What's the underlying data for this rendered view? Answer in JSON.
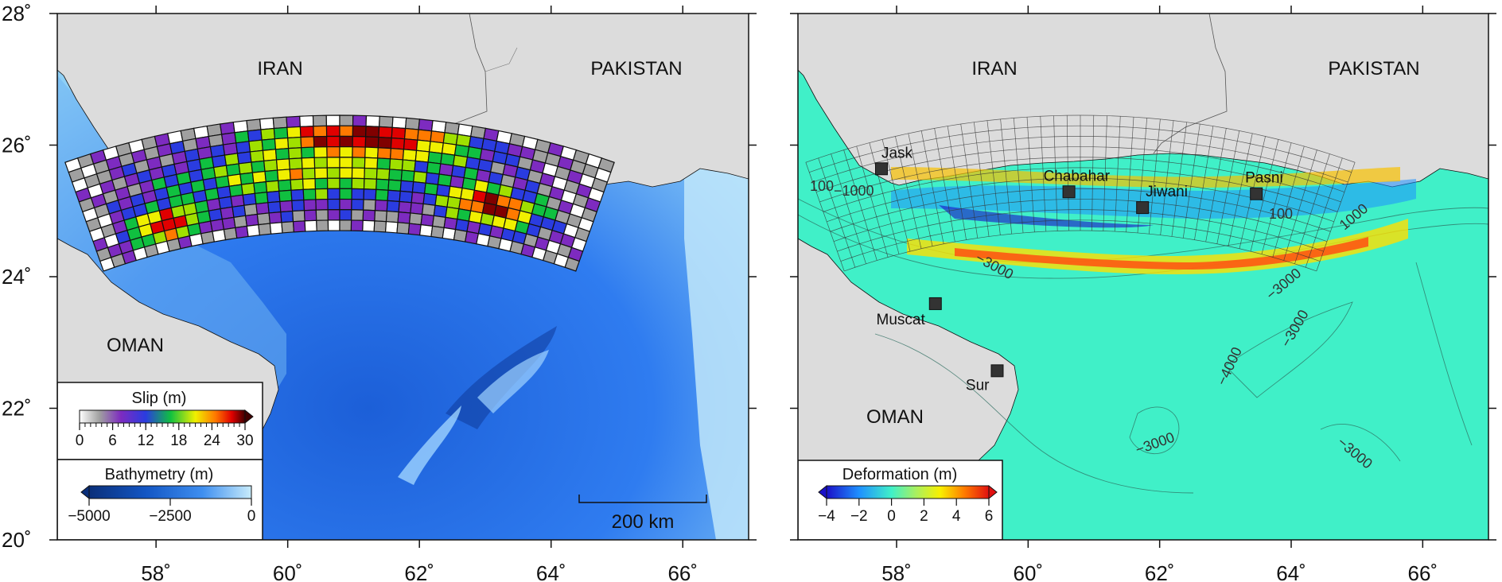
{
  "axes": {
    "lon_ticks": [
      "58˚",
      "60˚",
      "62˚",
      "64˚",
      "66˚"
    ],
    "lon_values": [
      58,
      60,
      62,
      64,
      66
    ],
    "lat_ticks": [
      "20˚",
      "22˚",
      "24˚",
      "26˚",
      "28˚"
    ],
    "lat_values": [
      20,
      22,
      24,
      26,
      28
    ],
    "lon_range": [
      56.5,
      67
    ],
    "lat_range": [
      20,
      28
    ]
  },
  "left_map": {
    "labels": {
      "iran": "IRAN",
      "pakistan": "PAKISTAN",
      "oman": "OMAN"
    },
    "scale_bar": "200 km",
    "slip_legend": {
      "title": "Slip (m)",
      "ticks": [
        "0",
        "6",
        "12",
        "18",
        "24",
        "30"
      ],
      "tick_values": [
        0,
        6,
        12,
        18,
        24,
        30
      ]
    },
    "bathy_legend": {
      "title": "Bathymetry (m)",
      "ticks": [
        "−5000",
        "−2500",
        "0"
      ],
      "tick_values": [
        -5000,
        -2500,
        0
      ]
    }
  },
  "right_map": {
    "labels": {
      "iran": "IRAN",
      "pakistan": "PAKISTAN",
      "oman": "OMAN"
    },
    "cities": [
      {
        "name": "Jask",
        "lon": 57.77,
        "lat": 25.64
      },
      {
        "name": "Chabahar",
        "lon": 60.62,
        "lat": 25.29
      },
      {
        "name": "Jiwani",
        "lon": 61.74,
        "lat": 25.05
      },
      {
        "name": "Pasni",
        "lon": 63.47,
        "lat": 25.26
      },
      {
        "name": "Muscat",
        "lon": 58.59,
        "lat": 23.59
      },
      {
        "name": "Sur",
        "lon": 59.53,
        "lat": 22.57
      }
    ],
    "contour_labels": [
      "100",
      "−1000",
      "−3000",
      "100",
      "1000",
      "−3000",
      "−3000",
      "−4000",
      "−3000",
      "−3000"
    ],
    "deform_legend": {
      "title": "Deformation (m)",
      "ticks": [
        "−4",
        "−2",
        "0",
        "2",
        "4",
        "6"
      ],
      "tick_values": [
        -4,
        -2,
        0,
        2,
        4,
        6
      ]
    }
  },
  "colors": {
    "land": "#dcdcdc",
    "deep_ocean": "#2f7cf0",
    "shallow_ocean": "#a8dcf5",
    "deformation_background": "#40f0c8",
    "city_marker": "#333333"
  }
}
